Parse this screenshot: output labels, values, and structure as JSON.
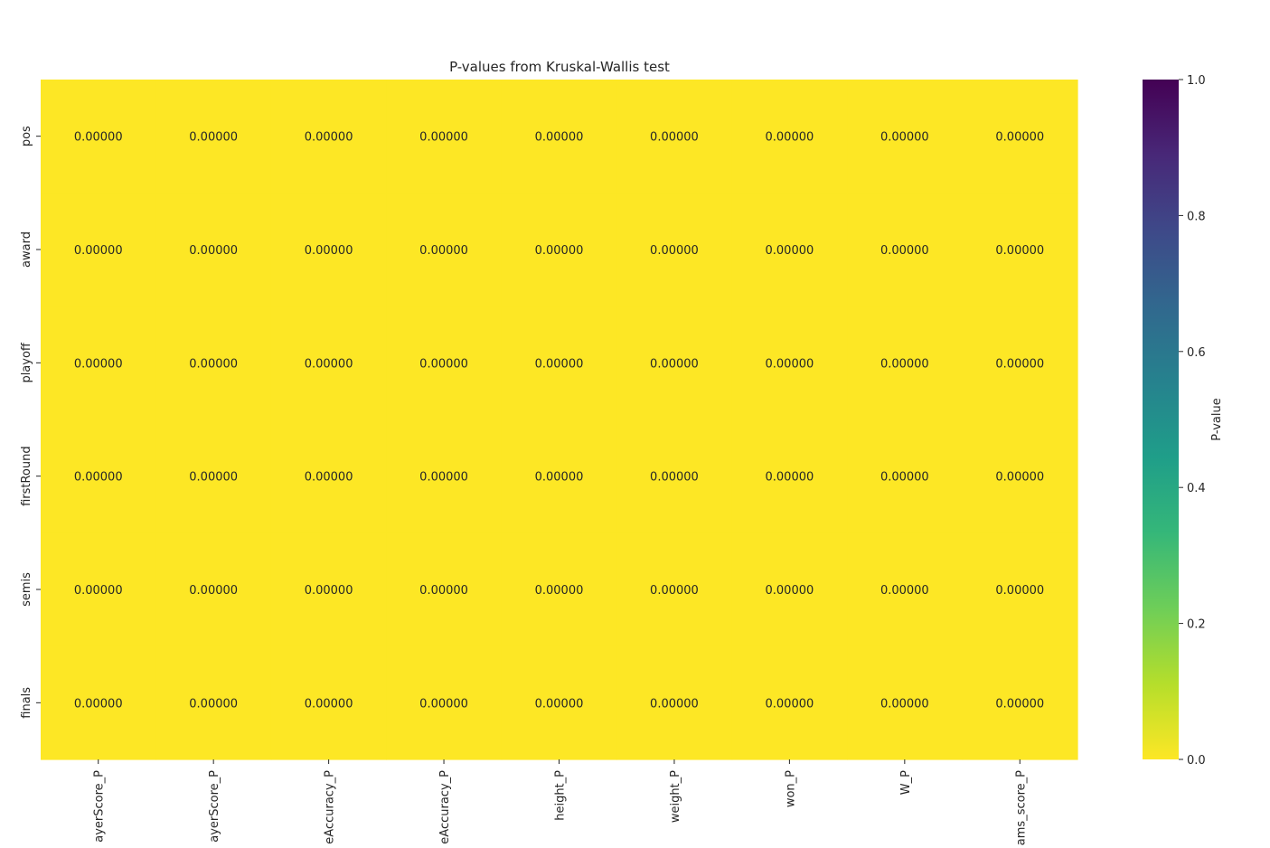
{
  "chart_data": {
    "type": "heatmap",
    "title": "P-values from Kruskal-Wallis test",
    "x_labels": [
      "ayerScore_P",
      "ayerScore_P",
      "eAccuracy_P",
      "eAccuracy_P",
      "height_P",
      "weight_P",
      "won_P",
      "W_P",
      "ams_score_P"
    ],
    "y_labels": [
      "pos",
      "award",
      "playoff",
      "firstRound",
      "semis",
      "finals"
    ],
    "values": [
      [
        0,
        0,
        0,
        0,
        0,
        0,
        0,
        0,
        0
      ],
      [
        0,
        0,
        0,
        0,
        0,
        0,
        0,
        0,
        0
      ],
      [
        0,
        0,
        0,
        0,
        0,
        0,
        0,
        0,
        0
      ],
      [
        0,
        0,
        0,
        0,
        0,
        0,
        0,
        0,
        0
      ],
      [
        0,
        0,
        0,
        0,
        0,
        0,
        0,
        0,
        0
      ],
      [
        0,
        0,
        0,
        0,
        0,
        0,
        0,
        0,
        0
      ]
    ],
    "cell_labels": [
      [
        "0.00000",
        "0.00000",
        "0.00000",
        "0.00000",
        "0.00000",
        "0.00000",
        "0.00000",
        "0.00000",
        "0.00000"
      ],
      [
        "0.00000",
        "0.00000",
        "0.00000",
        "0.00000",
        "0.00000",
        "0.00000",
        "0.00000",
        "0.00000",
        "0.00000"
      ],
      [
        "0.00000",
        "0.00000",
        "0.00000",
        "0.00000",
        "0.00000",
        "0.00000",
        "0.00000",
        "0.00000",
        "0.00000"
      ],
      [
        "0.00000",
        "0.00000",
        "0.00000",
        "0.00000",
        "0.00000",
        "0.00000",
        "0.00000",
        "0.00000",
        "0.00000"
      ],
      [
        "0.00000",
        "0.00000",
        "0.00000",
        "0.00000",
        "0.00000",
        "0.00000",
        "0.00000",
        "0.00000",
        "0.00000"
      ],
      [
        "0.00000",
        "0.00000",
        "0.00000",
        "0.00000",
        "0.00000",
        "0.00000",
        "0.00000",
        "0.00000",
        "0.00000"
      ]
    ],
    "colormap": "viridis_r",
    "colorbar": {
      "label": "P-value",
      "range": [
        0,
        1
      ],
      "ticks": [
        "0.0",
        "0.2",
        "0.4",
        "0.6",
        "0.8",
        "1.0"
      ],
      "colors": [
        "#fde725",
        "#b5de2b",
        "#6ece58",
        "#35b779",
        "#1f9e89",
        "#26828e",
        "#31688e",
        "#3e4989",
        "#482878",
        "#440154"
      ]
    }
  }
}
